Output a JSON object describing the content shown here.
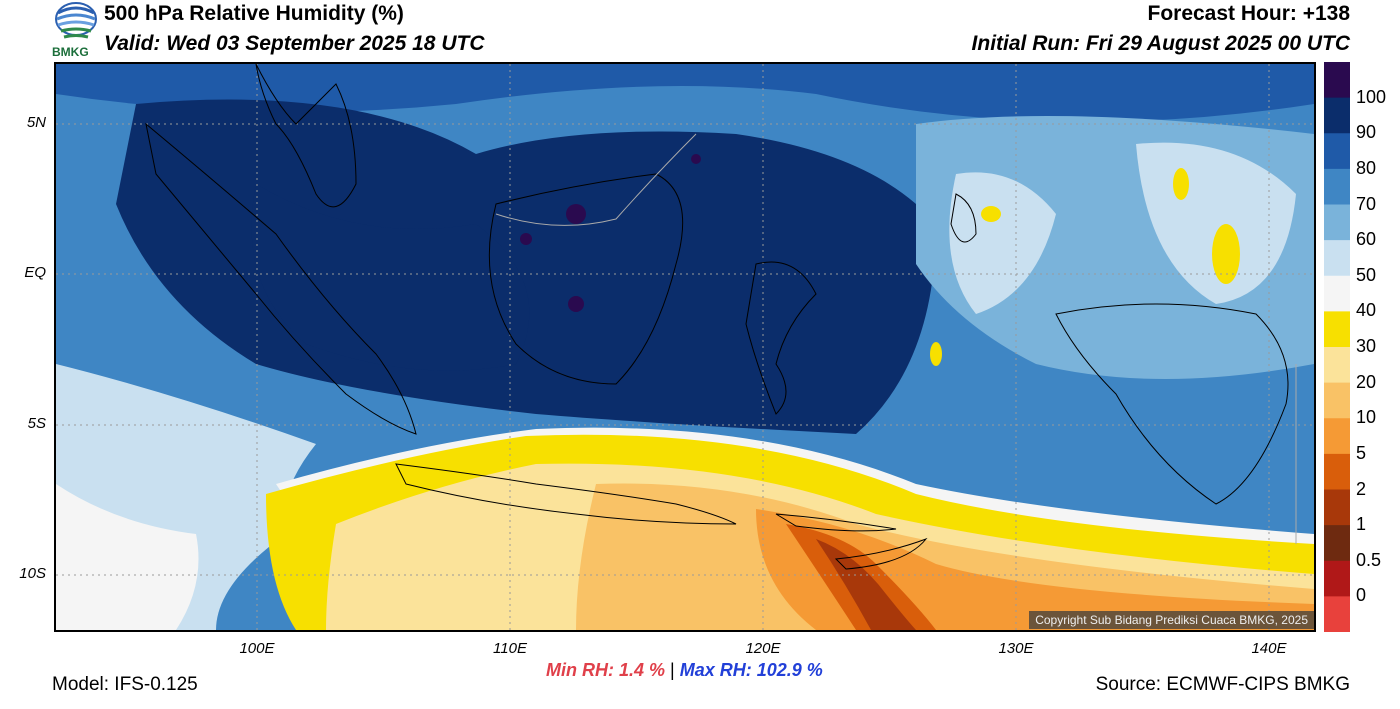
{
  "header": {
    "title": "500 hPa Relative Humidity (%)",
    "valid": "Valid: Wed 03 September 2025 18 UTC",
    "forecast_hour": "Forecast Hour: +138",
    "initial_run": "Initial Run: Fri 29 August 2025 00 UTC"
  },
  "logo_text": "BMKG",
  "latitude_labels": [
    "5N",
    "EQ",
    "5S",
    "10S"
  ],
  "longitude_labels": [
    "100E",
    "110E",
    "120E",
    "130E",
    "140E"
  ],
  "colorbar": {
    "labels": [
      "100",
      "90",
      "80",
      "70",
      "60",
      "50",
      "40",
      "30",
      "20",
      "10",
      "5",
      "2",
      "1",
      "0.5",
      "0"
    ],
    "colors": [
      "#2a0a4f",
      "#0b2d6b",
      "#1f5aa8",
      "#3f86c4",
      "#7ab3da",
      "#c9e0f0",
      "#f5f5f5",
      "#f7e000",
      "#fbe39a",
      "#f9c266",
      "#f59a35",
      "#d95e0b",
      "#a8380a",
      "#6e2a10",
      "#b01818",
      "#e8413c"
    ]
  },
  "footer": {
    "min_rh": "Min RH:   1.4 %",
    "separator": "|",
    "max_rh": "Max RH: 102.9 %",
    "model": "Model: IFS-0.125",
    "source": "Source: ECMWF-CIPS BMKG",
    "copyright": "Copyright Sub Bidang Prediksi Cuaca BMKG, 2025"
  }
}
